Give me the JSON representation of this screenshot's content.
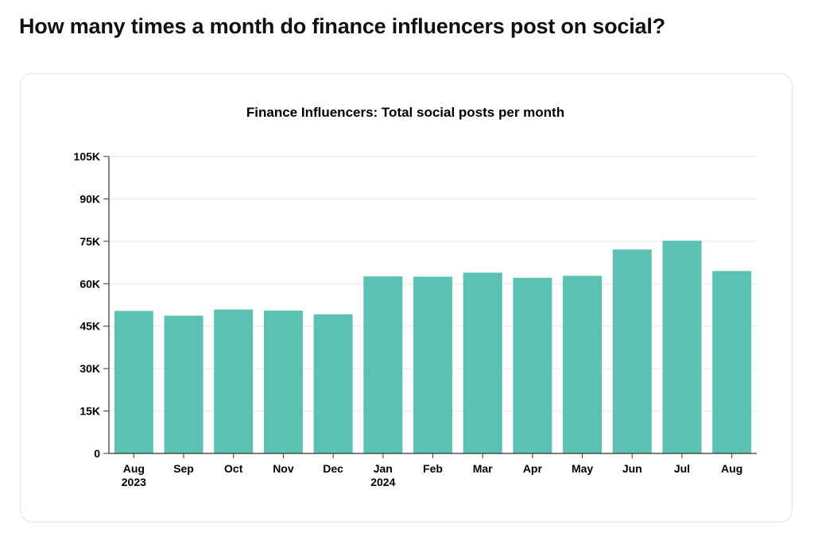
{
  "page": {
    "heading": "How many times a month do finance influencers post on social?"
  },
  "chart_data": {
    "type": "bar",
    "title": "Finance Influencers: Total social posts per month",
    "xlabel": "",
    "ylabel": "",
    "categories": [
      "Aug 2023",
      "Sep",
      "Oct",
      "Nov",
      "Dec",
      "Jan 2024",
      "Feb",
      "Mar",
      "Apr",
      "May",
      "Jun",
      "Jul",
      "Aug"
    ],
    "tick_labels": [
      [
        "Aug",
        "2023"
      ],
      [
        "Sep"
      ],
      [
        "Oct"
      ],
      [
        "Nov"
      ],
      [
        "Dec"
      ],
      [
        "Jan",
        "2024"
      ],
      [
        "Feb"
      ],
      [
        "Mar"
      ],
      [
        "Apr"
      ],
      [
        "May"
      ],
      [
        "Jun"
      ],
      [
        "Jul"
      ],
      [
        "Aug"
      ]
    ],
    "values": [
      50400,
      48700,
      50900,
      50500,
      49200,
      62600,
      62500,
      63900,
      62100,
      62800,
      72100,
      75200,
      64500
    ],
    "ylim": [
      0,
      105000
    ],
    "yticks": [
      0,
      15000,
      30000,
      45000,
      60000,
      75000,
      90000,
      105000
    ],
    "ytick_labels": [
      "0",
      "15K",
      "30K",
      "45K",
      "60K",
      "75K",
      "90K",
      "105K"
    ],
    "grid": true,
    "legend": "none",
    "bar_color": "#5bc2b3",
    "grid_color": "#e6e6e6"
  }
}
